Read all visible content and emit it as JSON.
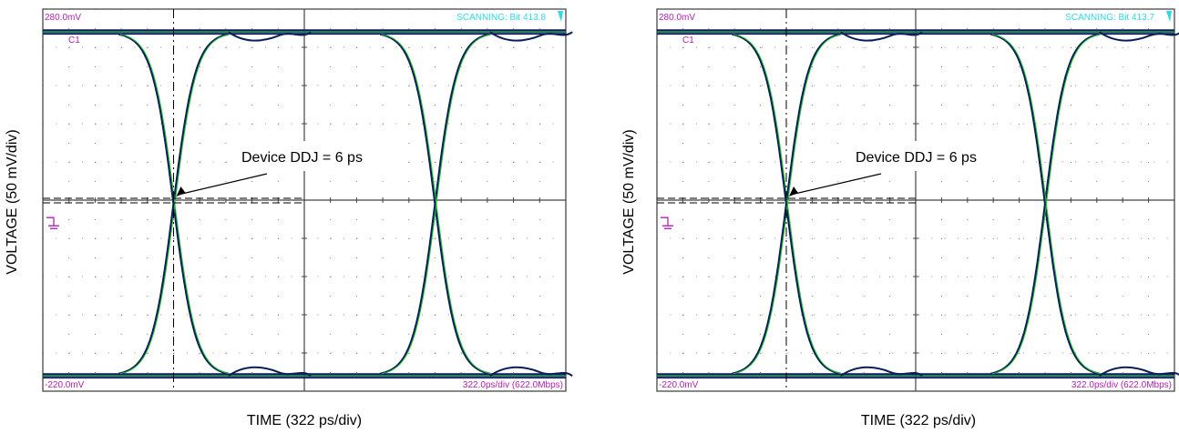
{
  "chart_data": [
    {
      "type": "line",
      "ylabel": "VOLTAGE (50 mV/div)",
      "xlabel": "TIME (322 ps/div)",
      "top_readout": "280.0mV",
      "bottom_readout": "-220.0mV",
      "status": "SCANNING: Bit 413.8",
      "timebase": "322.0ps/div (622.0Mbps)",
      "channel_label": "C1",
      "annotation": "Device DDJ = 6 ps",
      "ylim": [
        -220,
        280
      ],
      "high_level_mV": 250,
      "low_level_mV": -200,
      "crossing_level_mV": 30,
      "crossing_times_div": [
        1.0,
        3.0
      ],
      "grid": true,
      "colors": {
        "trace": "#0b1e5a",
        "overlay": "#22c52e",
        "grid": "#666666",
        "marker": "#b020b0",
        "status": "#30d8e8"
      }
    },
    {
      "type": "line",
      "ylabel": "VOLTAGE (50 mV/div)",
      "xlabel": "TIME (322 ps/div)",
      "top_readout": "280.0mV",
      "bottom_readout": "-220.0mV",
      "status": "SCANNING: Bit 413.7",
      "timebase": "322.0ps/div (622.0Mbps)",
      "channel_label": "C1",
      "annotation": "Device DDJ = 6 ps",
      "ylim": [
        -220,
        280
      ],
      "high_level_mV": 250,
      "low_level_mV": -200,
      "crossing_level_mV": 30,
      "crossing_times_div": [
        1.0,
        3.0
      ],
      "grid": true,
      "colors": {
        "trace": "#0b1e5a",
        "overlay": "#22c52e",
        "grid": "#666666",
        "marker": "#b020b0",
        "status": "#30d8e8"
      }
    }
  ]
}
